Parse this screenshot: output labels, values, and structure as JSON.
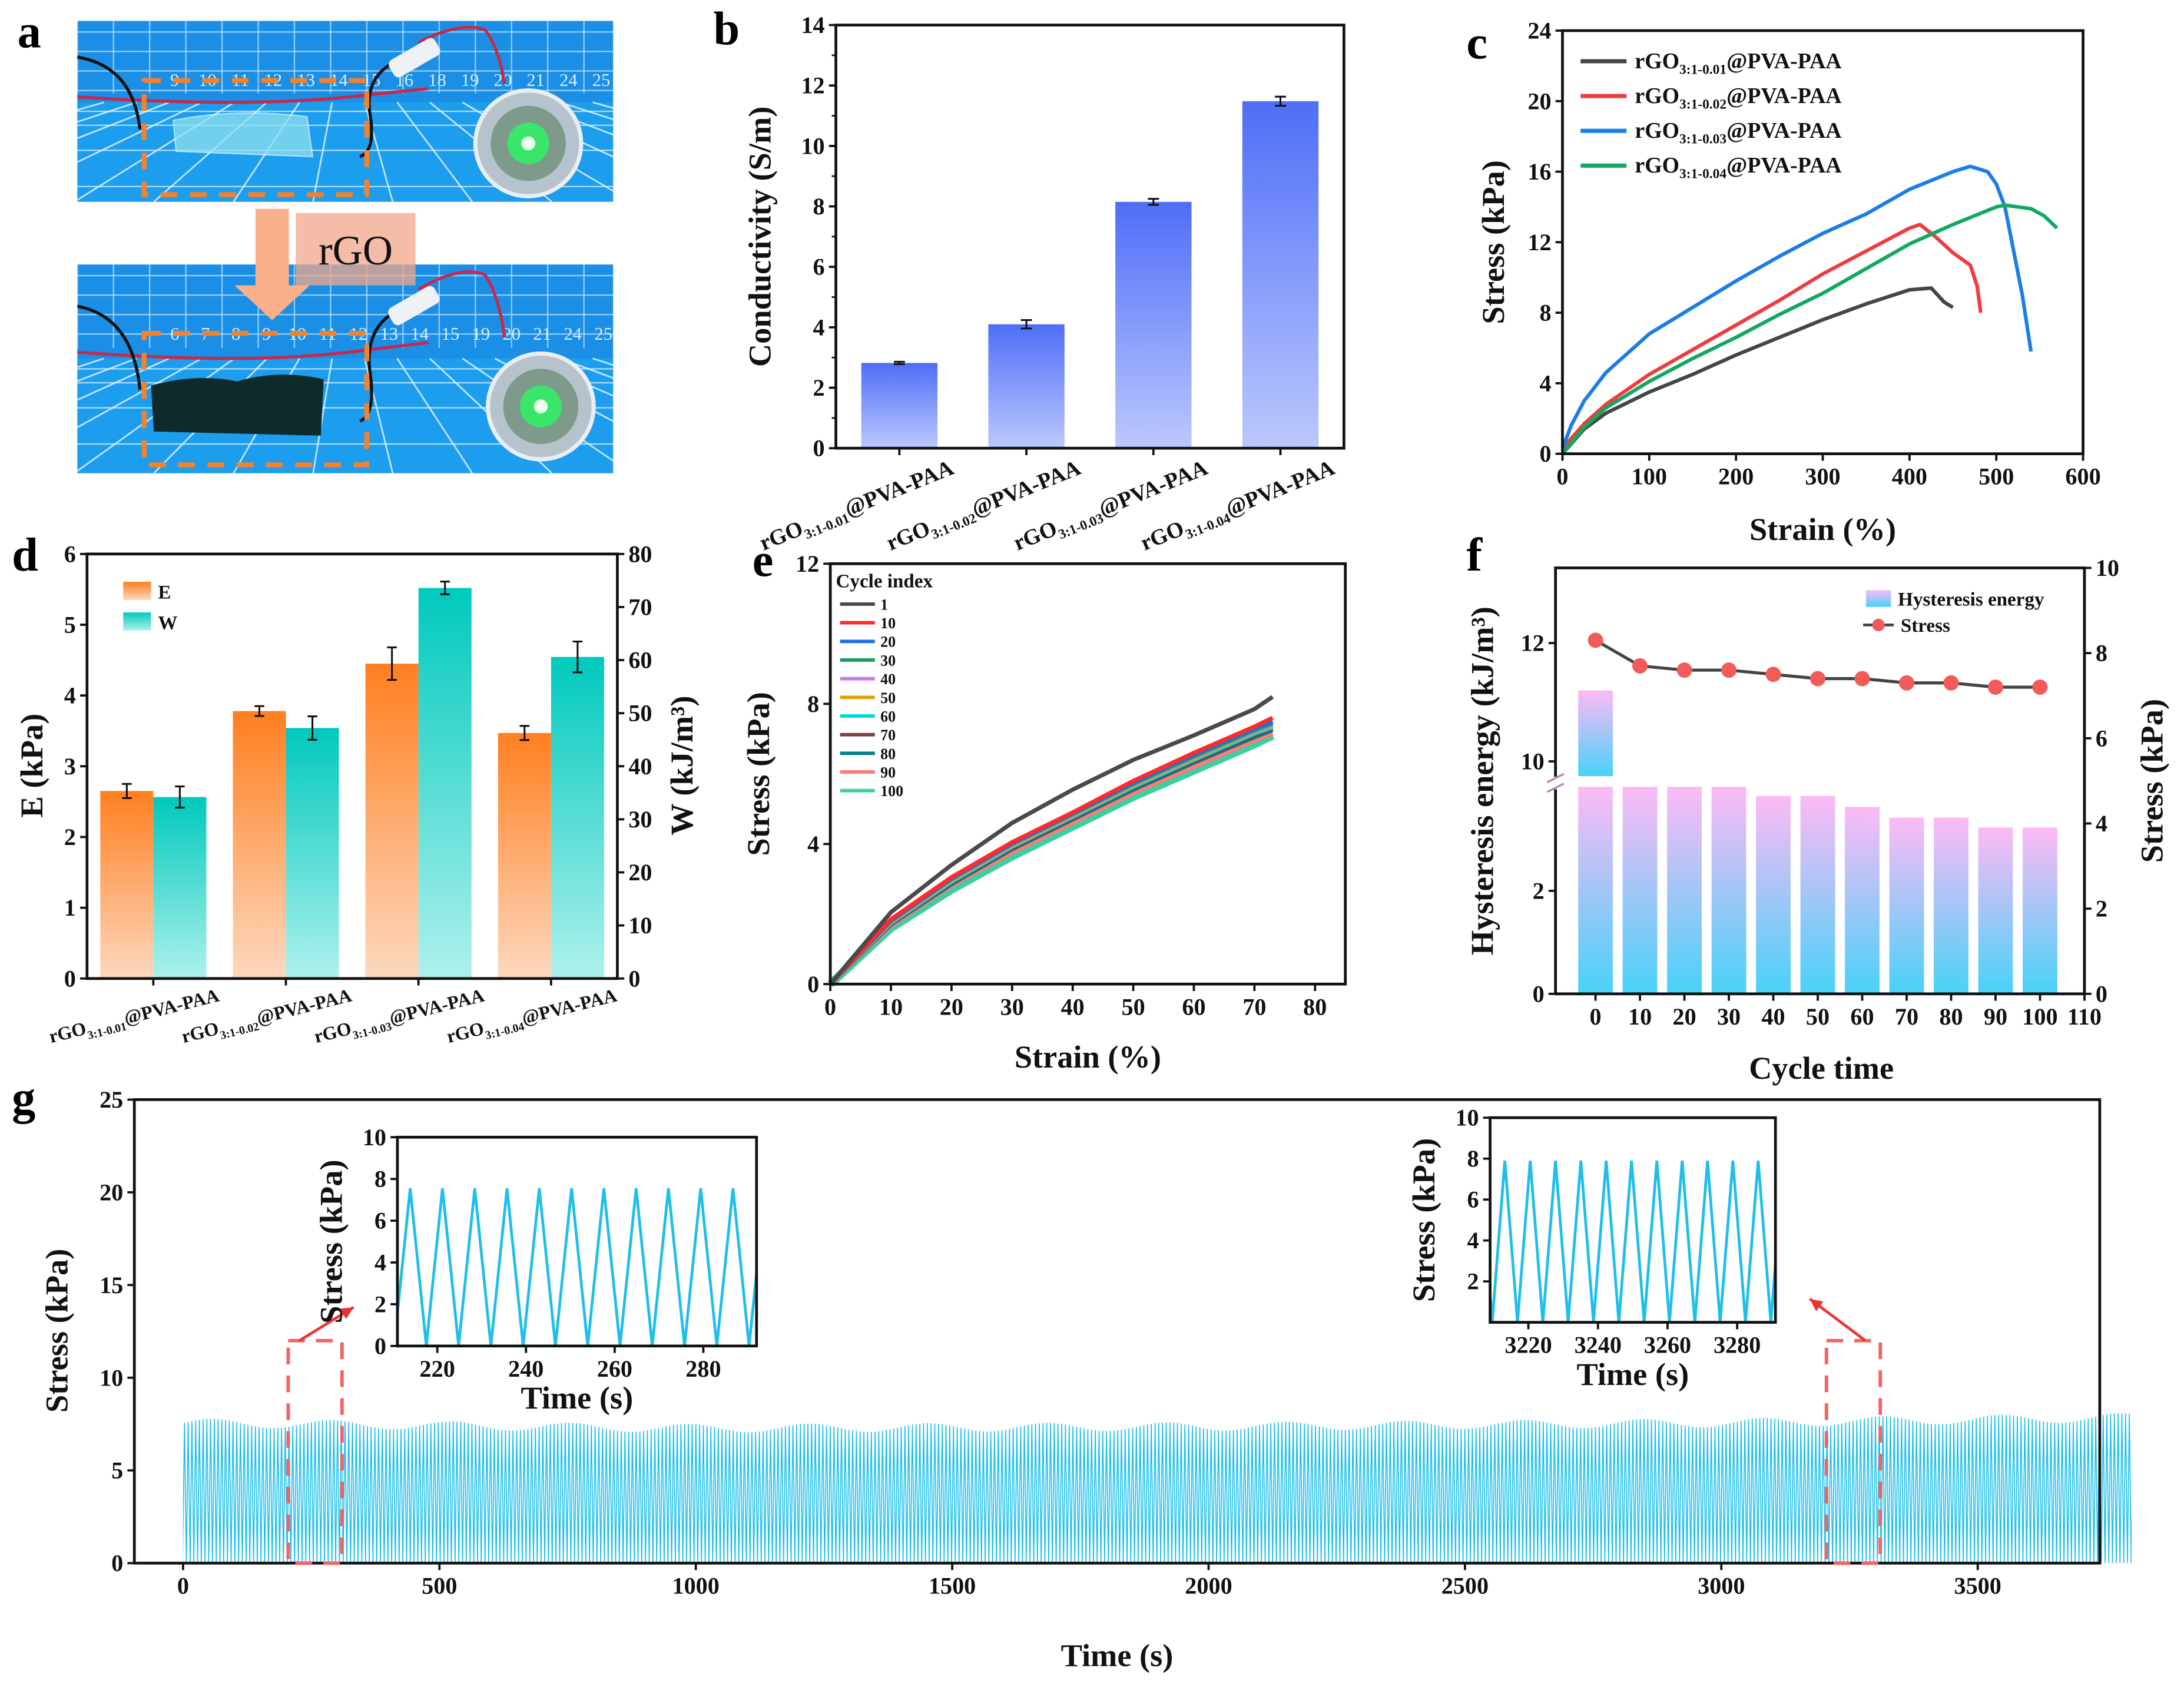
{
  "panel_labels": {
    "a": "a",
    "b": "b",
    "c": "c",
    "d": "d",
    "e": "e",
    "f": "f",
    "g": "g"
  },
  "panel_a": {
    "treatment_label": "rGO",
    "ruler_top": [
      "9",
      "10",
      "11",
      "12",
      "13",
      "14",
      "15",
      "16",
      "18",
      "19",
      "20",
      "21",
      "24",
      "25"
    ],
    "ruler_bottom": [
      "6",
      "7",
      "8",
      "9",
      "10",
      "11",
      "12",
      "13",
      "14",
      "15",
      "19",
      "20",
      "21",
      "24",
      "25"
    ],
    "colors": {
      "mat": "#1b8fe6",
      "dash": "#f5822a",
      "arrow": "#fbb08c",
      "led": "#33ee66"
    }
  },
  "chart_data": [
    {
      "panel": "b",
      "type": "bar",
      "title": "",
      "xlabel": "",
      "ylabel": "Conductivity (S/m)",
      "ylim": [
        0,
        14
      ],
      "y_ticks": [
        0,
        2,
        4,
        6,
        8,
        10,
        12,
        14
      ],
      "categories": [
        {
          "base": "rGO",
          "sub": "3:1-0.01",
          "suffix": "@PVA-PAA"
        },
        {
          "base": "rGO",
          "sub": "3:1-0.02",
          "suffix": "@PVA-PAA"
        },
        {
          "base": "rGO",
          "sub": "3:1-0.03",
          "suffix": "@PVA-PAA"
        },
        {
          "base": "rGO",
          "sub": "3:1-0.04",
          "suffix": "@PVA-PAA"
        }
      ],
      "values": [
        2.82,
        4.1,
        8.15,
        11.48
      ],
      "errors": [
        0.04,
        0.14,
        0.1,
        0.15
      ],
      "colors": {
        "top": "#4f6ef7",
        "bottom": "#bcc8fd"
      }
    },
    {
      "panel": "c",
      "type": "line",
      "xlabel": "Strain (%)",
      "ylabel": "Stress (kPa)",
      "xlim": [
        0,
        600
      ],
      "ylim": [
        0,
        24
      ],
      "x_ticks": [
        0,
        100,
        200,
        300,
        400,
        500,
        600
      ],
      "y_ticks": [
        0,
        4,
        8,
        12,
        16,
        20,
        24
      ],
      "legend_position": "top-left",
      "series": [
        {
          "label": {
            "base": "rGO",
            "sub": "3:1-0.01",
            "suffix": "@PVA-PAA"
          },
          "color": "#454545",
          "points": [
            [
              0,
              0
            ],
            [
              25,
              1.4
            ],
            [
              50,
              2.3
            ],
            [
              100,
              3.5
            ],
            [
              150,
              4.5
            ],
            [
              200,
              5.6
            ],
            [
              250,
              6.6
            ],
            [
              300,
              7.6
            ],
            [
              350,
              8.5
            ],
            [
              400,
              9.3
            ],
            [
              425,
              9.4
            ],
            [
              440,
              8.6
            ],
            [
              450,
              8.3
            ]
          ]
        },
        {
          "label": {
            "base": "rGO",
            "sub": "3:1-0.02",
            "suffix": "@PVA-PAA"
          },
          "color": "#f03c3c",
          "points": [
            [
              0,
              0.3
            ],
            [
              25,
              1.7
            ],
            [
              50,
              2.8
            ],
            [
              100,
              4.5
            ],
            [
              150,
              5.9
            ],
            [
              200,
              7.3
            ],
            [
              250,
              8.7
            ],
            [
              300,
              10.2
            ],
            [
              350,
              11.5
            ],
            [
              400,
              12.8
            ],
            [
              412,
              13
            ],
            [
              430,
              12.3
            ],
            [
              450,
              11.4
            ],
            [
              470,
              10.7
            ],
            [
              478,
              9.5
            ],
            [
              482,
              8
            ]
          ]
        },
        {
          "label": {
            "base": "rGO",
            "sub": "3:1-0.03",
            "suffix": "@PVA-PAA"
          },
          "color": "#1a7de8",
          "points": [
            [
              0,
              0.3
            ],
            [
              10,
              1.6
            ],
            [
              25,
              3
            ],
            [
              50,
              4.6
            ],
            [
              100,
              6.8
            ],
            [
              150,
              8.3
            ],
            [
              200,
              9.8
            ],
            [
              250,
              11.2
            ],
            [
              300,
              12.5
            ],
            [
              350,
              13.6
            ],
            [
              400,
              15
            ],
            [
              450,
              16
            ],
            [
              470,
              16.3
            ],
            [
              490,
              16
            ],
            [
              500,
              15.3
            ],
            [
              510,
              14
            ],
            [
              520,
              11.5
            ],
            [
              530,
              9
            ],
            [
              540,
              5.8
            ]
          ]
        },
        {
          "label": {
            "base": "rGO",
            "sub": "3:1-0.04",
            "suffix": "@PVA-PAA"
          },
          "color": "#13a860",
          "points": [
            [
              0,
              0
            ],
            [
              25,
              1.5
            ],
            [
              50,
              2.6
            ],
            [
              100,
              4.1
            ],
            [
              150,
              5.4
            ],
            [
              200,
              6.6
            ],
            [
              250,
              7.9
            ],
            [
              300,
              9.1
            ],
            [
              350,
              10.5
            ],
            [
              400,
              11.9
            ],
            [
              450,
              13
            ],
            [
              500,
              14
            ],
            [
              510,
              14.1
            ],
            [
              540,
              13.9
            ],
            [
              555,
              13.5
            ],
            [
              570,
              12.8
            ]
          ]
        }
      ]
    },
    {
      "panel": "d",
      "type": "bar",
      "xlabel": "",
      "ylabel": "E (kPa)",
      "ylabel_right": "W (kJ/m³)",
      "ylim": [
        0,
        6
      ],
      "ylim_right": [
        0,
        80
      ],
      "y_ticks": [
        0,
        1,
        2,
        3,
        4,
        5,
        6
      ],
      "y_ticks_right": [
        0,
        10,
        20,
        30,
        40,
        50,
        60,
        70,
        80
      ],
      "legend_position": "top-left",
      "categories": [
        {
          "base": "rGO",
          "sub": "3:1-0.01",
          "suffix": "@PVA-PAA"
        },
        {
          "base": "rGO",
          "sub": "3:1-0.02",
          "suffix": "@PVA-PAA"
        },
        {
          "base": "rGO",
          "sub": "3:1-0.03",
          "suffix": "@PVA-PAA"
        },
        {
          "base": "rGO",
          "sub": "3:1-0.04",
          "suffix": "@PVA-PAA"
        }
      ],
      "series": [
        {
          "name": "E",
          "axis": "left",
          "values": [
            2.65,
            3.78,
            4.45,
            3.47
          ],
          "errors": [
            0.1,
            0.07,
            0.23,
            0.1
          ],
          "color_top": "#ff7f1f",
          "color_bottom": "#fdd8bf"
        },
        {
          "name": "W",
          "axis": "right",
          "values": [
            34.2,
            47.2,
            73.6,
            60.6
          ],
          "errors": [
            2.0,
            2.2,
            1.2,
            2.9
          ],
          "color_top": "#00c9bd",
          "color_bottom": "#aef1ec"
        }
      ]
    },
    {
      "panel": "e",
      "type": "line",
      "xlabel": "Strain (%)",
      "ylabel": "Stress (kPa)",
      "xlim": [
        0,
        85
      ],
      "ylim": [
        0,
        12
      ],
      "x_ticks": [
        0,
        10,
        20,
        30,
        40,
        50,
        60,
        70,
        80
      ],
      "y_ticks": [
        0,
        4,
        8,
        12
      ],
      "legend_title": "Cycle index",
      "legend_position": "top-left",
      "x": [
        0,
        10,
        20,
        30,
        40,
        50,
        60,
        70,
        73
      ],
      "series": [
        {
          "name": "1",
          "color": "#4a4a4a",
          "values": [
            0,
            2.05,
            3.4,
            4.6,
            5.55,
            6.4,
            7.1,
            7.85,
            8.2
          ]
        },
        {
          "name": "10",
          "color": "#ff2a2a",
          "values": [
            0,
            1.85,
            3.05,
            4.05,
            4.9,
            5.8,
            6.6,
            7.35,
            7.6
          ]
        },
        {
          "name": "20",
          "color": "#1a6fe8",
          "values": [
            0,
            1.82,
            3.02,
            4.02,
            4.88,
            5.75,
            6.55,
            7.3,
            7.5
          ]
        },
        {
          "name": "30",
          "color": "#14a05a",
          "values": [
            0,
            1.8,
            3.0,
            4.0,
            4.85,
            5.72,
            6.5,
            7.25,
            7.45
          ]
        },
        {
          "name": "40",
          "color": "#c77de8",
          "values": [
            0,
            1.78,
            2.98,
            3.97,
            4.82,
            5.7,
            6.47,
            7.22,
            7.4
          ]
        },
        {
          "name": "50",
          "color": "#e0a000",
          "values": [
            0,
            1.76,
            2.95,
            3.95,
            4.8,
            5.67,
            6.44,
            7.2,
            7.38
          ]
        },
        {
          "name": "60",
          "color": "#00d8e0",
          "values": [
            0,
            1.74,
            2.92,
            3.92,
            4.77,
            5.63,
            6.4,
            7.15,
            7.33
          ]
        },
        {
          "name": "70",
          "color": "#7a4040",
          "values": [
            0,
            1.72,
            2.9,
            3.88,
            4.73,
            5.6,
            6.36,
            7.1,
            7.3
          ]
        },
        {
          "name": "80",
          "color": "#007f8a",
          "values": [
            0,
            1.7,
            2.85,
            3.85,
            4.7,
            5.55,
            6.32,
            7.05,
            7.25
          ]
        },
        {
          "name": "90",
          "color": "#ff7a7a",
          "values": [
            0,
            1.65,
            2.8,
            3.75,
            4.6,
            5.45,
            6.2,
            6.95,
            7.15
          ]
        },
        {
          "name": "100",
          "color": "#3ccf9f",
          "values": [
            0,
            1.6,
            2.7,
            3.65,
            4.5,
            5.35,
            6.1,
            6.85,
            7.1
          ]
        }
      ]
    },
    {
      "panel": "f",
      "type": "bar",
      "xlabel": "Cycle time",
      "ylabel": "Hysteresis energy (kJ/m³)",
      "ylabel_right": "Stress (kPa)",
      "xlim": [
        -9,
        110
      ],
      "x_ticks": [
        0,
        10,
        20,
        30,
        40,
        50,
        60,
        70,
        80,
        90,
        100,
        110
      ],
      "y_ticks": [
        0,
        2,
        10,
        12
      ],
      "y_break": [
        4.2,
        9.7
      ],
      "y_ticks_right": [
        0,
        2,
        4,
        6,
        8,
        10
      ],
      "ylim_right": [
        0,
        10
      ],
      "legend_position": "top-right",
      "x": [
        0,
        10,
        20,
        30,
        40,
        50,
        60,
        70,
        80,
        90,
        100
      ],
      "series": [
        {
          "name": "Hysteresis energy",
          "type": "bar",
          "values": [
            11.2,
            4.02,
            4.02,
            4.02,
            3.84,
            3.84,
            3.63,
            3.42,
            3.42,
            3.23,
            3.23
          ],
          "color_top": "#fdbaf5",
          "color_bottom": "#48d2f8"
        },
        {
          "name": "Stress",
          "type": "line",
          "axis": "right",
          "values": [
            8.3,
            7.7,
            7.6,
            7.6,
            7.5,
            7.4,
            7.4,
            7.3,
            7.3,
            7.2,
            7.2
          ],
          "color": "#f35b5b",
          "line_color": "#444444"
        }
      ],
      "left_tick_color": "#c47fb6"
    },
    {
      "panel": "g",
      "type": "line",
      "xlabel": "Time (s)",
      "ylabel": "Stress (kPa)",
      "xlim": [
        -95,
        3738
      ],
      "ylim": [
        0,
        25
      ],
      "x_ticks": [
        0,
        500,
        1000,
        1500,
        2000,
        2500,
        3000,
        3500
      ],
      "y_ticks": [
        0,
        5,
        10,
        15,
        20,
        25
      ],
      "color": "#1fbfe9",
      "signal": {
        "duration_s": 3800,
        "period_s": 7.28,
        "trough_phase_s": 6.4,
        "min_stress": 0,
        "peak_envelope": [
          [
            0,
            7.8
          ],
          [
            1000,
            7.5
          ],
          [
            2000,
            7.6
          ],
          [
            3000,
            7.8
          ],
          [
            3800,
            8.1
          ]
        ]
      },
      "highlight_windows": [
        [
          205,
          310,
          12
        ],
        [
          3205,
          3310,
          12
        ]
      ],
      "highlight_color": "#f26464",
      "insets": [
        {
          "xlabel": "Time (s)",
          "ylabel": "Stress (kPa)",
          "xlim": [
            211,
            292
          ],
          "ylim": [
            0,
            10
          ],
          "x_ticks": [
            220,
            240,
            260,
            280
          ],
          "y_ticks": [
            0,
            2,
            4,
            6,
            8,
            10
          ],
          "peak": 7.55
        },
        {
          "xlabel": "Time (s)",
          "ylabel": "Stress (kPa)",
          "xlim": [
            3209,
            3291
          ],
          "ylim": [
            0,
            10
          ],
          "x_ticks": [
            3220,
            3240,
            3260,
            3280
          ],
          "y_ticks": [
            2,
            4,
            6,
            8,
            10
          ],
          "peak": 7.9
        }
      ]
    }
  ]
}
